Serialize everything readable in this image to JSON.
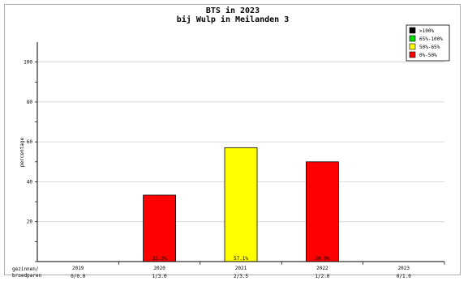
{
  "chart_data": {
    "type": "bar",
    "title": "BTS in 2023",
    "subtitle": "bij Wulp in Meilanden 3",
    "ylabel": "percentage",
    "ylim": [
      0,
      100
    ],
    "yticks": [
      20,
      40,
      60,
      80,
      100
    ],
    "categories": [
      "2019",
      "2020",
      "2021",
      "2022",
      "2023"
    ],
    "counts": [
      "0/0.0",
      "1/3.0",
      "2/3.5",
      "1/2.0",
      "0/1.0"
    ],
    "values": [
      null,
      33.3,
      57.1,
      50.0,
      null
    ],
    "value_labels": [
      "",
      "33.3%",
      "57.1%",
      "50.0%",
      ""
    ],
    "bar_colors": [
      null,
      "#ff0000",
      "#ffff00",
      "#ff0000",
      null
    ],
    "corner_label_lines": [
      "gezinnen/",
      "broedparen"
    ],
    "legend": {
      "placement": "top-right",
      "entries": [
        {
          "label": ">100%",
          "color": "#000000"
        },
        {
          "label": "65%-100%",
          "color": "#00dd00"
        },
        {
          "label": "50%-65%",
          "color": "#ffff00"
        },
        {
          "label": "0%-50%",
          "color": "#ff0000"
        }
      ]
    },
    "grid": true
  }
}
